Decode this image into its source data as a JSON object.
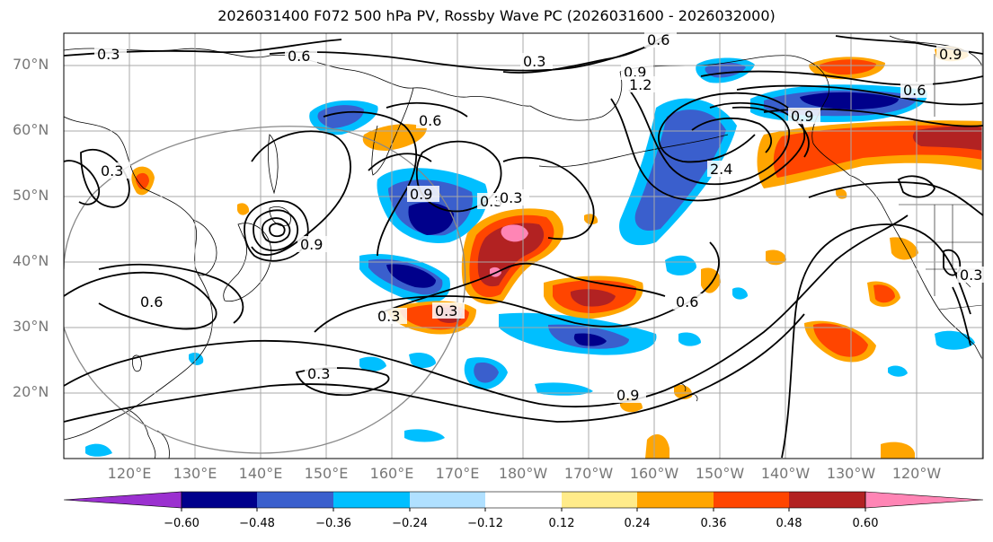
{
  "title": "2026031400 F072 500 hPa PV, Rossby Wave PC (2026031600 - 2026032000)",
  "lat_labels": [
    "70°N",
    "60°N",
    "50°N",
    "40°N",
    "30°N",
    "20°N"
  ],
  "lon_labels": [
    "120°E",
    "130°E",
    "140°E",
    "150°E",
    "160°E",
    "170°E",
    "180°W",
    "170°W",
    "160°W",
    "150°W",
    "140°W",
    "130°W",
    "120°W"
  ],
  "colorbar": {
    "ticks": [
      "−0.60",
      "−0.48",
      "−0.36",
      "−0.24",
      "−0.12",
      "0.12",
      "0.24",
      "0.36",
      "0.48",
      "0.60"
    ],
    "colors": [
      "#9b30d0",
      "#00008b",
      "#3a5fcd",
      "#00bfff",
      "#b0e0ff",
      "#ffffff",
      "#ffeb8a",
      "#ffa500",
      "#ff4500",
      "#b22222",
      "#ff85b5"
    ],
    "extend": "both"
  },
  "contour_labels": [
    "0.3",
    "0.6",
    "0.3",
    "0.9",
    "0.6",
    "0.9",
    "1.2",
    "0.6",
    "0.9",
    "0.3",
    "0.6",
    "0.9",
    "0.3",
    "0.3",
    "0.6",
    "0.9",
    "0.3",
    "0.3",
    "0.6",
    "0.3",
    "2.4",
    "0.9",
    "0.3"
  ],
  "map": {
    "lat_range": [
      10,
      75
    ],
    "lon_range": [
      110,
      250
    ],
    "grid": true,
    "projection": "cylindrical"
  }
}
